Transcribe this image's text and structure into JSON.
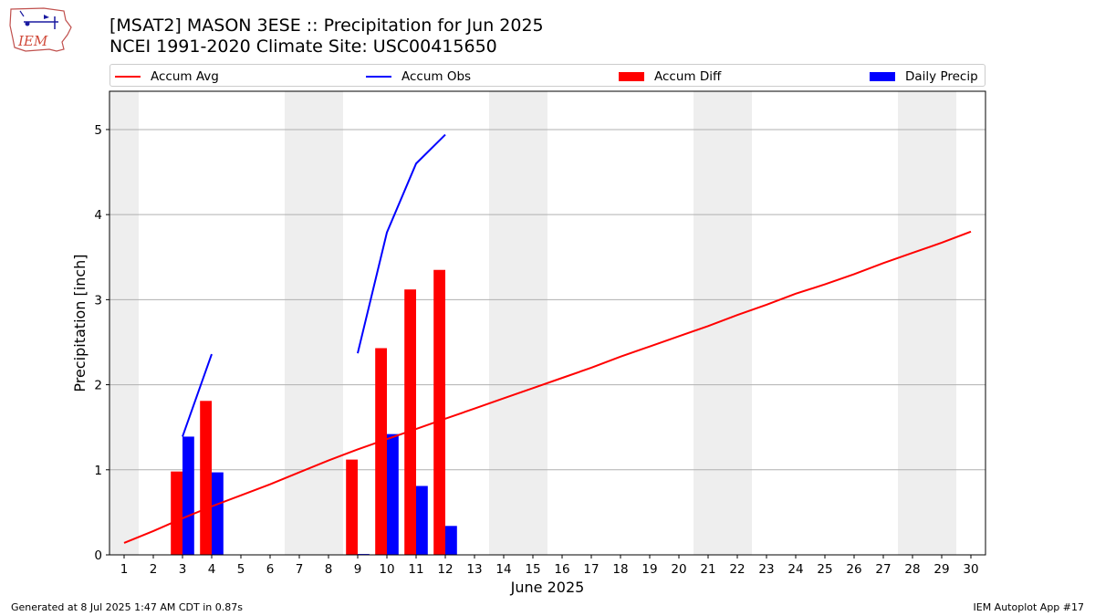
{
  "header": {
    "title": "[MSAT2] MASON 3ESE :: Precipitation for Jun 2025",
    "subtitle": "NCEI 1991-2020 Climate Site: USC00415650",
    "logo_text": "IEM"
  },
  "footer": {
    "generated": "Generated at 8 Jul 2025 1:47 AM CDT in 0.87s",
    "app": "IEM Autoplot App #17"
  },
  "legend": {
    "placement": "top",
    "items": [
      {
        "label": "Accum Avg",
        "kind": "line",
        "color": "#ff0000"
      },
      {
        "label": "Accum Obs",
        "kind": "line",
        "color": "#0000ff"
      },
      {
        "label": "Accum Diff",
        "kind": "bar",
        "color": "#ff0000"
      },
      {
        "label": "Daily Precip",
        "kind": "bar",
        "color": "#0000ff"
      }
    ]
  },
  "chart_data": {
    "type": "bar",
    "xlabel": "June 2025",
    "ylabel": "Precipitation [inch]",
    "xlim": [
      0.5,
      30.5
    ],
    "ylim": [
      0,
      5.45
    ],
    "x_ticks": [
      1,
      2,
      3,
      4,
      5,
      6,
      7,
      8,
      9,
      10,
      11,
      12,
      13,
      14,
      15,
      16,
      17,
      18,
      19,
      20,
      21,
      22,
      23,
      24,
      25,
      26,
      27,
      28,
      29,
      30
    ],
    "y_ticks": [
      0,
      1,
      2,
      3,
      4,
      5
    ],
    "grid": "horizontal",
    "weekend_shading": [
      [
        0.5,
        1.5
      ],
      [
        6.5,
        8.5
      ],
      [
        13.5,
        15.5
      ],
      [
        20.5,
        22.5
      ],
      [
        27.5,
        29.5
      ]
    ],
    "weekend_color": "#eeeeee",
    "series": [
      {
        "name": "Accum Avg",
        "kind": "line",
        "color": "#ff0000",
        "x": [
          1,
          2,
          3,
          4,
          5,
          6,
          7,
          8,
          9,
          10,
          11,
          12,
          13,
          14,
          15,
          16,
          17,
          18,
          19,
          20,
          21,
          22,
          23,
          24,
          25,
          26,
          27,
          28,
          29,
          30
        ],
        "values": [
          0.14,
          0.28,
          0.43,
          0.57,
          0.7,
          0.83,
          0.97,
          1.11,
          1.24,
          1.36,
          1.48,
          1.6,
          1.72,
          1.84,
          1.96,
          2.08,
          2.2,
          2.33,
          2.45,
          2.57,
          2.69,
          2.82,
          2.94,
          3.07,
          3.18,
          3.3,
          3.43,
          3.55,
          3.67,
          3.8
        ]
      },
      {
        "name": "Accum Obs",
        "kind": "line",
        "color": "#0000ff",
        "segments": [
          {
            "x": [
              3,
              4
            ],
            "values": [
              1.39,
              2.36
            ]
          },
          {
            "x": [
              9,
              10,
              11,
              12
            ],
            "values": [
              2.37,
              3.79,
              4.6,
              4.94
            ]
          }
        ]
      },
      {
        "name": "Accum Diff",
        "kind": "bar",
        "color": "#ff0000",
        "offset": -0.2,
        "x": [
          3,
          4,
          9,
          10,
          11,
          12
        ],
        "values": [
          0.98,
          1.81,
          1.12,
          2.43,
          3.12,
          3.35
        ]
      },
      {
        "name": "Daily Precip",
        "kind": "bar",
        "color": "#0000ff",
        "offset": 0.2,
        "x": [
          3,
          4,
          9,
          10,
          11,
          12
        ],
        "values": [
          1.39,
          0.97,
          0.01,
          1.42,
          0.81,
          0.34
        ]
      }
    ]
  }
}
